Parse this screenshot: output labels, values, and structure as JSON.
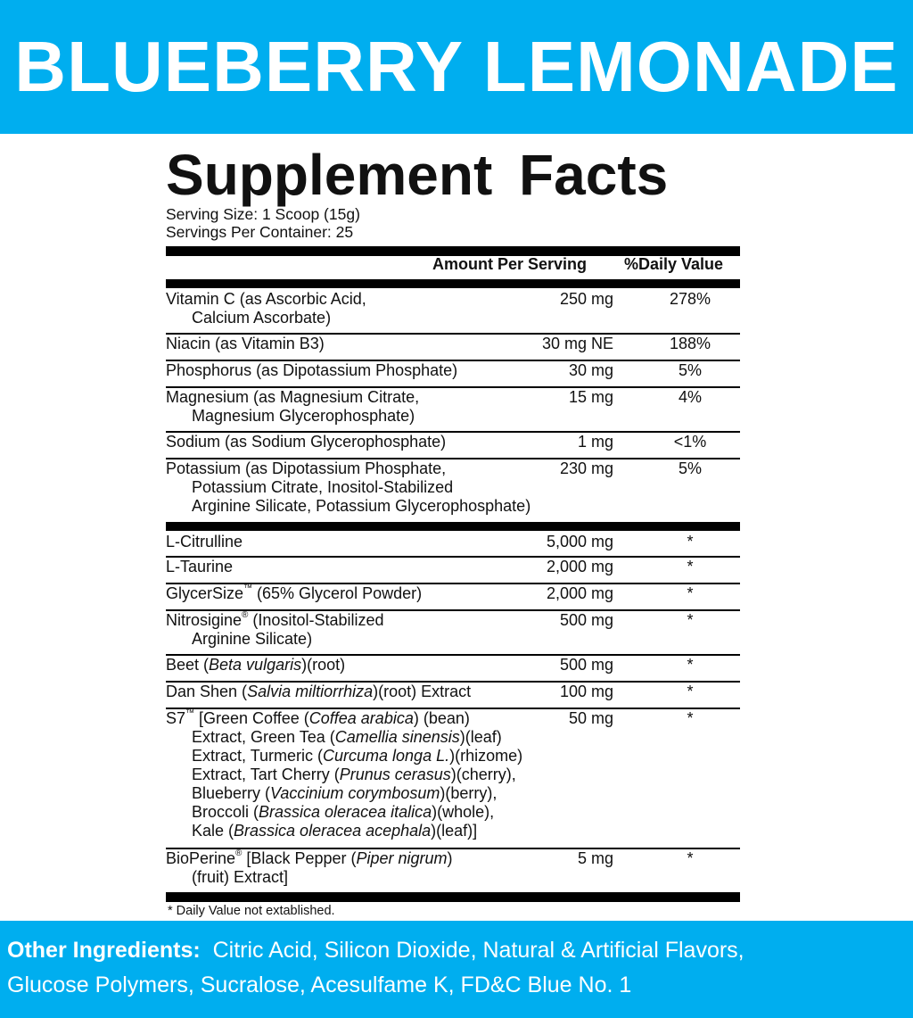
{
  "flavor": "BLUEBERRY LEMONADE",
  "title": "Supplement Facts",
  "serving_size": "Serving Size: 1 Scoop (15g)",
  "servings_per_container": "Servings Per Container: 25",
  "header": {
    "amount": "Amount Per Serving",
    "daily_value": "%Daily Value"
  },
  "colors": {
    "brand_blue": "#00aeef",
    "text": "#111111"
  },
  "rows": [
    {
      "lines": [
        [
          [
            "Vitamin C (as Ascorbic Acid,",
            "n"
          ]
        ],
        [
          [
            "Calcium Ascorbate)",
            "n"
          ]
        ]
      ],
      "amount": "250 mg",
      "dv": "278%"
    },
    {
      "lines": [
        [
          [
            "Niacin (as Vitamin B3)",
            "n"
          ]
        ]
      ],
      "amount": "30 mg NE",
      "dv": "188%"
    },
    {
      "lines": [
        [
          [
            "Phosphorus (as Dipotassium Phosphate)",
            "n"
          ]
        ]
      ],
      "amount": "30 mg",
      "dv": "5%"
    },
    {
      "lines": [
        [
          [
            "Magnesium (as Magnesium Citrate,",
            "n"
          ]
        ],
        [
          [
            "Magnesium Glycerophosphate)",
            "n"
          ]
        ]
      ],
      "amount": "15 mg",
      "dv": "4%"
    },
    {
      "lines": [
        [
          [
            "Sodium (as Sodium Glycerophosphate)",
            "n"
          ]
        ]
      ],
      "amount": "1 mg",
      "dv": "<1%"
    },
    {
      "lines": [
        [
          [
            "Potassium (as Dipotassium Phosphate,",
            "n"
          ]
        ],
        [
          [
            "Potassium Citrate, Inositol-Stabilized",
            "n"
          ]
        ],
        [
          [
            "Arginine Silicate, Potassium Glycerophosphate)",
            "n"
          ]
        ]
      ],
      "amount": "230 mg",
      "dv": "5%"
    },
    {
      "lines": [
        [
          [
            "L-Citrulline",
            "n"
          ]
        ]
      ],
      "amount": "5,000 mg",
      "dv": "*"
    },
    {
      "lines": [
        [
          [
            "L-Taurine",
            "n"
          ]
        ]
      ],
      "amount": "2,000 mg",
      "dv": "*"
    },
    {
      "lines": [
        [
          [
            "GlycerSize",
            "n"
          ],
          [
            "™",
            "s"
          ],
          [
            " (65% Glycerol Powder)",
            "n"
          ]
        ]
      ],
      "amount": "2,000 mg",
      "dv": "*"
    },
    {
      "lines": [
        [
          [
            "Nitrosigine",
            "n"
          ],
          [
            "®",
            "s"
          ],
          [
            " (Inositol-Stabilized",
            "n"
          ]
        ],
        [
          [
            "Arginine Silicate)",
            "n"
          ]
        ]
      ],
      "amount": "500 mg",
      "dv": "*"
    },
    {
      "lines": [
        [
          [
            "Beet (",
            "n"
          ],
          [
            "Beta vulgaris",
            "i"
          ],
          [
            ")(root)",
            "n"
          ]
        ]
      ],
      "amount": "500 mg",
      "dv": "*"
    },
    {
      "lines": [
        [
          [
            "Dan Shen (",
            "n"
          ],
          [
            "Salvia miltiorrhiza",
            "i"
          ],
          [
            ")(root) Extract",
            "n"
          ]
        ]
      ],
      "amount": "100 mg",
      "dv": "*"
    },
    {
      "lines": [
        [
          [
            "S7",
            "n"
          ],
          [
            "™",
            "s"
          ],
          [
            " [Green Coffee (",
            "n"
          ],
          [
            "Coffea arabica",
            "i"
          ],
          [
            ") (bean)",
            "n"
          ]
        ],
        [
          [
            "Extract, Green Tea (",
            "n"
          ],
          [
            "Camellia sinensis",
            "i"
          ],
          [
            ")(leaf)",
            "n"
          ]
        ],
        [
          [
            "Extract, Turmeric (",
            "n"
          ],
          [
            "Curcuma longa L.",
            "i"
          ],
          [
            ")(rhizome)",
            "n"
          ]
        ],
        [
          [
            "Extract, Tart Cherry (",
            "n"
          ],
          [
            "Prunus cerasus",
            "i"
          ],
          [
            ")(cherry),",
            "n"
          ]
        ],
        [
          [
            "Blueberry (",
            "n"
          ],
          [
            "Vaccinium corymbosum",
            "i"
          ],
          [
            ")(berry),",
            "n"
          ]
        ],
        [
          [
            "Broccoli (",
            "n"
          ],
          [
            "Brassica oleracea italica",
            "i"
          ],
          [
            ")(whole),",
            "n"
          ]
        ],
        [
          [
            "Kale (",
            "n"
          ],
          [
            "Brassica oleracea acephala",
            "i"
          ],
          [
            ")(leaf)]",
            "n"
          ]
        ]
      ],
      "amount": "50 mg",
      "dv": "*"
    },
    {
      "lines": [
        [
          [
            "BioPerine",
            "n"
          ],
          [
            "®",
            "s"
          ],
          [
            " [Black Pepper (",
            "n"
          ],
          [
            "Piper nigrum",
            "i"
          ],
          [
            ")",
            "n"
          ]
        ],
        [
          [
            "(fruit) Extract]",
            "n"
          ]
        ]
      ],
      "amount": "5 mg",
      "dv": "*"
    }
  ],
  "footnote": "* Daily Value not extablished.",
  "other_ingredients": {
    "label": "Other Ingredients:",
    "line1": "Citric Acid, Silicon Dioxide, Natural & Artificial Flavors,",
    "line2": "Glucose Polymers, Sucralose, Acesulfame K, FD&C Blue No. 1"
  }
}
